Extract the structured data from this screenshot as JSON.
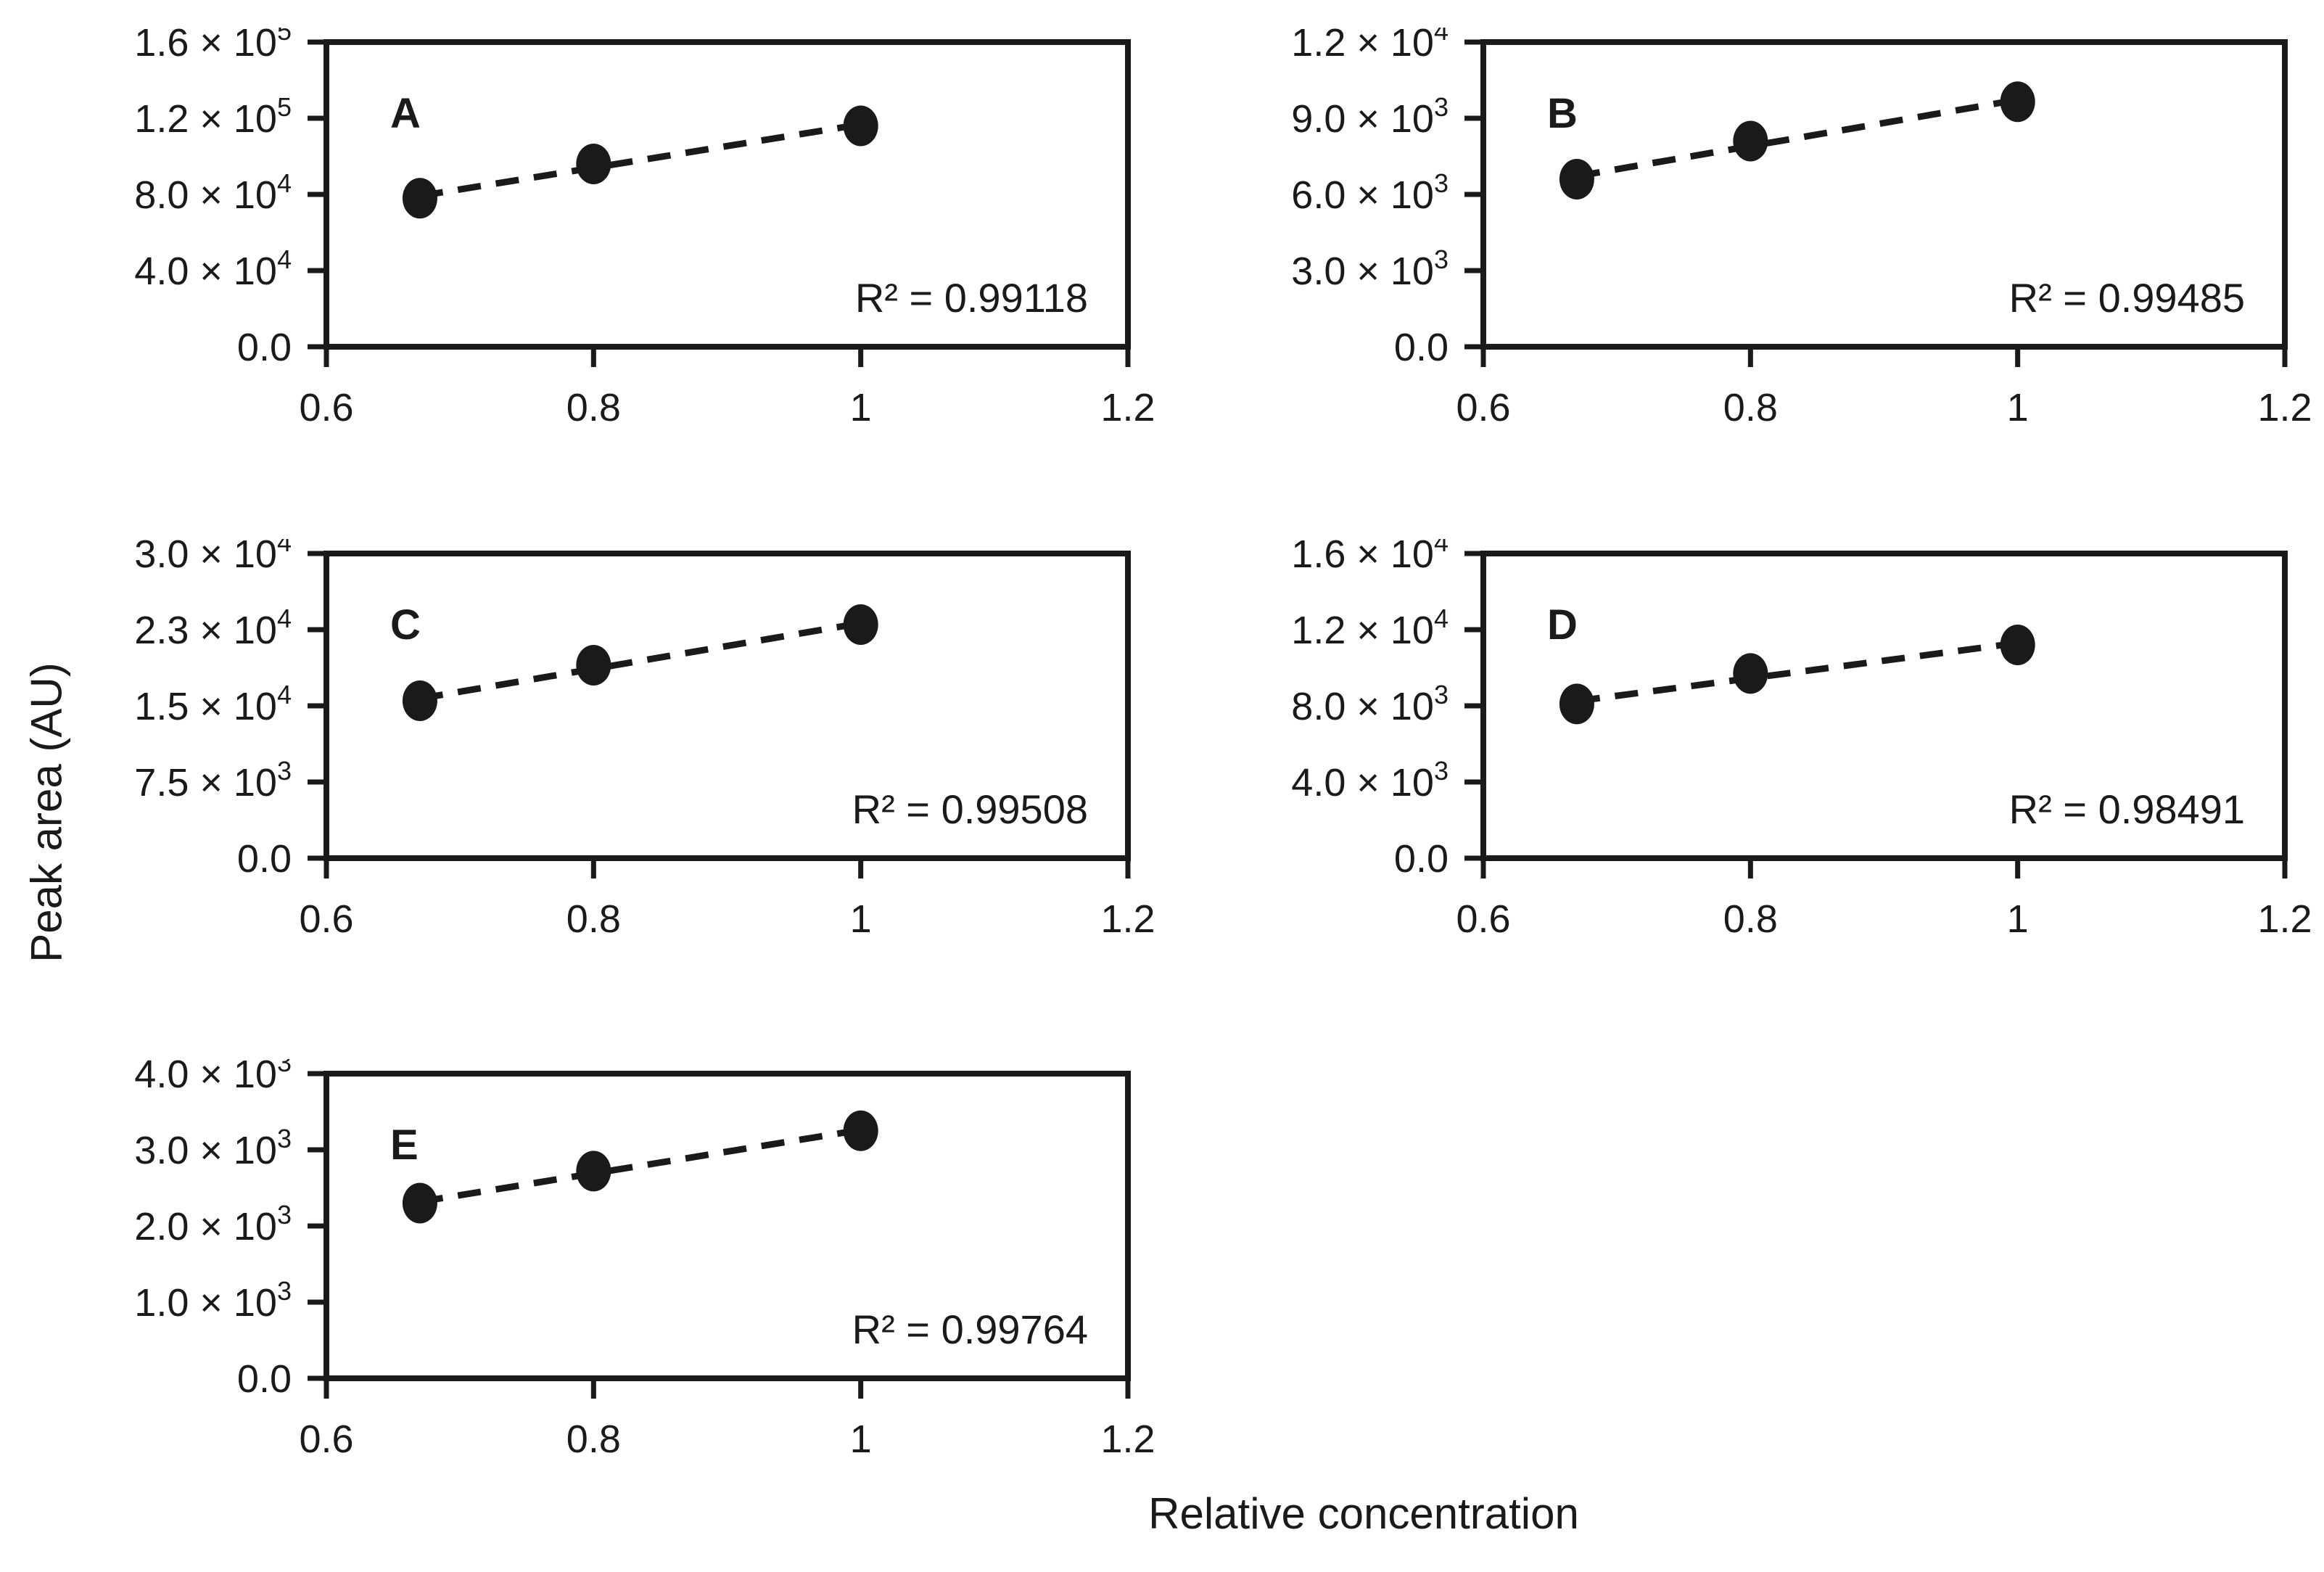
{
  "figure": {
    "xlabel": "Relative concentration",
    "ylabel": "Peak area (AU)",
    "background": "#ffffff",
    "ink": "#1a1a1a"
  },
  "chart_data": [
    {
      "type": "scatter",
      "panel": "A",
      "r2": 0.99118,
      "r2_label": "R² = 0.99118",
      "trendline": "dashed-linear-fit",
      "x": [
        0.67,
        0.8,
        1.0
      ],
      "y": [
        78000,
        96000,
        116000
      ],
      "xlim": [
        0.6,
        1.2
      ],
      "ylim": [
        0,
        160000
      ],
      "xtick_values": [
        0.6,
        0.8,
        1.0,
        1.2
      ],
      "xtick_labels": [
        "0.6",
        "0.8",
        "1",
        "1.2"
      ],
      "ytick_labels": [
        {
          "text": "0.0",
          "exp": null
        },
        {
          "text": "4.0 × 10",
          "exp": "4"
        },
        {
          "text": "8.0 × 10",
          "exp": "4"
        },
        {
          "text": "1.2 × 10",
          "exp": "5"
        },
        {
          "text": "1.6 × 10",
          "exp": "5"
        }
      ]
    },
    {
      "type": "scatter",
      "panel": "B",
      "r2": 0.99485,
      "r2_label": "R² = 0.99485",
      "trendline": "dashed-linear-fit",
      "x": [
        0.67,
        0.8,
        1.0
      ],
      "y": [
        6600,
        8100,
        9650
      ],
      "xlim": [
        0.6,
        1.2
      ],
      "ylim": [
        0,
        12000
      ],
      "xtick_values": [
        0.6,
        0.8,
        1.0,
        1.2
      ],
      "xtick_labels": [
        "0.6",
        "0.8",
        "1",
        "1.2"
      ],
      "ytick_labels": [
        {
          "text": "0.0",
          "exp": null
        },
        {
          "text": "3.0 × 10",
          "exp": "3"
        },
        {
          "text": "6.0 × 10",
          "exp": "3"
        },
        {
          "text": "9.0 × 10",
          "exp": "3"
        },
        {
          "text": "1.2 × 10",
          "exp": "4"
        }
      ]
    },
    {
      "type": "scatter",
      "panel": "C",
      "r2": 0.99508,
      "r2_label": "R² = 0.99508",
      "trendline": "dashed-linear-fit",
      "x": [
        0.67,
        0.8,
        1.0
      ],
      "y": [
        15500,
        19000,
        23000
      ],
      "xlim": [
        0.6,
        1.2
      ],
      "ylim": [
        0,
        30000
      ],
      "xtick_values": [
        0.6,
        0.8,
        1.0,
        1.2
      ],
      "xtick_labels": [
        "0.6",
        "0.8",
        "1",
        "1.2"
      ],
      "ytick_labels": [
        {
          "text": "0.0",
          "exp": null
        },
        {
          "text": "7.5 × 10",
          "exp": "3"
        },
        {
          "text": "1.5 × 10",
          "exp": "4"
        },
        {
          "text": "2.3 × 10",
          "exp": "4"
        },
        {
          "text": "3.0 × 10",
          "exp": "4"
        }
      ]
    },
    {
      "type": "scatter",
      "panel": "D",
      "r2": 0.98491,
      "r2_label": "R² = 0.98491",
      "trendline": "dashed-linear-fit",
      "x": [
        0.67,
        0.8,
        1.0
      ],
      "y": [
        8100,
        9700,
        11200
      ],
      "xlim": [
        0.6,
        1.2
      ],
      "ylim": [
        0,
        16000
      ],
      "xtick_values": [
        0.6,
        0.8,
        1.0,
        1.2
      ],
      "xtick_labels": [
        "0.6",
        "0.8",
        "1",
        "1.2"
      ],
      "ytick_labels": [
        {
          "text": "0.0",
          "exp": null
        },
        {
          "text": "4.0 × 10",
          "exp": "3"
        },
        {
          "text": "8.0 × 10",
          "exp": "3"
        },
        {
          "text": "1.2 × 10",
          "exp": "4"
        },
        {
          "text": "1.6 × 10",
          "exp": "4"
        }
      ]
    },
    {
      "type": "scatter",
      "panel": "E",
      "r2": 0.99764,
      "r2_label": "R² = 0.99764",
      "trendline": "dashed-linear-fit",
      "x": [
        0.67,
        0.8,
        1.0
      ],
      "y": [
        2300,
        2720,
        3250
      ],
      "xlim": [
        0.6,
        1.2
      ],
      "ylim": [
        0,
        4000
      ],
      "xtick_values": [
        0.6,
        0.8,
        1.0,
        1.2
      ],
      "xtick_labels": [
        "0.6",
        "0.8",
        "1",
        "1.2"
      ],
      "ytick_labels": [
        {
          "text": "0.0",
          "exp": null
        },
        {
          "text": "1.0 × 10",
          "exp": "3"
        },
        {
          "text": "2.0 × 10",
          "exp": "3"
        },
        {
          "text": "3.0 × 10",
          "exp": "3"
        },
        {
          "text": "4.0 × 10",
          "exp": "3"
        }
      ]
    }
  ]
}
